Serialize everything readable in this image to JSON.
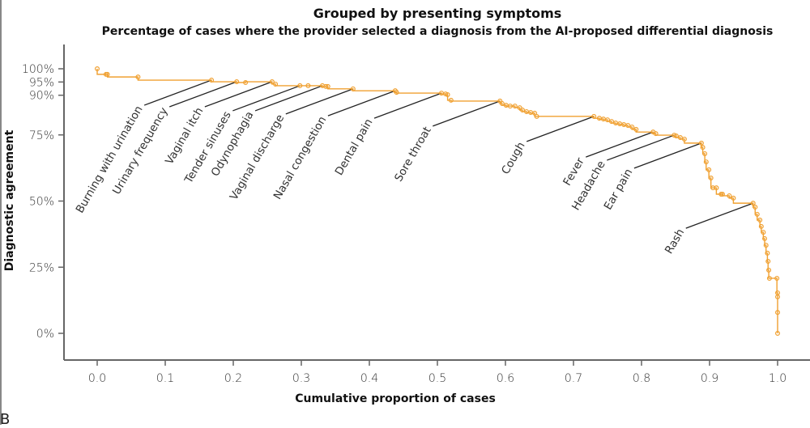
{
  "panel_letter": "B",
  "chart_data": {
    "type": "line",
    "style": "step",
    "title": "Grouped by presenting symptoms",
    "subtitle": "Percentage of cases where the provider selected a diagnosis from the AI-proposed differential diagnosis",
    "xlabel": "Cumulative proportion of cases",
    "ylabel": "Diagnostic agreement",
    "xlim": [
      -0.045,
      1.045
    ],
    "ylim": [
      -10,
      106
    ],
    "x_ticks": [
      0.0,
      0.1,
      0.2,
      0.3,
      0.4,
      0.5,
      0.6,
      0.7,
      0.8,
      0.9,
      1.0
    ],
    "x_tick_labels": [
      "0.0",
      "0.1",
      "0.2",
      "0.3",
      "0.4",
      "0.5",
      "0.6",
      "0.7",
      "0.8",
      "0.9",
      "1.0"
    ],
    "y_ticks": [
      0,
      25,
      50,
      75,
      90,
      95,
      100
    ],
    "y_tick_labels": [
      "0%",
      "25%",
      "50%",
      "75%",
      "90%",
      "95%",
      "100%"
    ],
    "grid": false,
    "series_color": "#F0A030",
    "series": [
      {
        "name": "Diagnostic agreement by symptom",
        "points": [
          [
            0.0,
            100.0
          ],
          [
            0.013,
            97.9
          ],
          [
            0.015,
            97.9
          ],
          [
            0.06,
            96.9
          ],
          [
            0.168,
            95.7
          ],
          [
            0.205,
            95.1
          ],
          [
            0.218,
            94.8
          ],
          [
            0.257,
            95.1
          ],
          [
            0.262,
            94.2
          ],
          [
            0.298,
            93.6
          ],
          [
            0.31,
            93.6
          ],
          [
            0.331,
            93.6
          ],
          [
            0.336,
            93.3
          ],
          [
            0.339,
            93.3
          ],
          [
            0.376,
            92.4
          ],
          [
            0.438,
            91.7
          ],
          [
            0.44,
            91.1
          ],
          [
            0.506,
            90.8
          ],
          [
            0.512,
            90.5
          ],
          [
            0.515,
            90.2
          ],
          [
            0.52,
            88.1
          ],
          [
            0.592,
            87.8
          ],
          [
            0.595,
            86.9
          ],
          [
            0.601,
            86.2
          ],
          [
            0.607,
            85.9
          ],
          [
            0.614,
            85.9
          ],
          [
            0.621,
            85.3
          ],
          [
            0.625,
            84.4
          ],
          [
            0.631,
            83.8
          ],
          [
            0.637,
            83.5
          ],
          [
            0.643,
            83.2
          ],
          [
            0.646,
            82.0
          ],
          [
            0.73,
            82.0
          ],
          [
            0.738,
            81.3
          ],
          [
            0.744,
            81.0
          ],
          [
            0.75,
            80.7
          ],
          [
            0.756,
            80.1
          ],
          [
            0.762,
            79.5
          ],
          [
            0.768,
            79.2
          ],
          [
            0.774,
            78.9
          ],
          [
            0.78,
            78.6
          ],
          [
            0.786,
            78.0
          ],
          [
            0.792,
            77.1
          ],
          [
            0.817,
            76.1
          ],
          [
            0.821,
            75.5
          ],
          [
            0.848,
            74.9
          ],
          [
            0.851,
            74.6
          ],
          [
            0.857,
            74.0
          ],
          [
            0.863,
            73.4
          ],
          [
            0.888,
            71.9
          ],
          [
            0.89,
            70.3
          ],
          [
            0.893,
            67.9
          ],
          [
            0.895,
            64.8
          ],
          [
            0.899,
            61.8
          ],
          [
            0.902,
            58.7
          ],
          [
            0.905,
            55.0
          ],
          [
            0.91,
            55.0
          ],
          [
            0.917,
            52.6
          ],
          [
            0.919,
            52.6
          ],
          [
            0.929,
            52.0
          ],
          [
            0.935,
            51.1
          ],
          [
            0.964,
            49.2
          ],
          [
            0.967,
            47.7
          ],
          [
            0.97,
            45.0
          ],
          [
            0.974,
            42.8
          ],
          [
            0.976,
            40.4
          ],
          [
            0.979,
            38.2
          ],
          [
            0.981,
            35.8
          ],
          [
            0.983,
            33.3
          ],
          [
            0.985,
            30.3
          ],
          [
            0.986,
            27.2
          ],
          [
            0.987,
            23.9
          ],
          [
            0.988,
            20.8
          ],
          [
            0.999,
            20.8
          ],
          [
            1.0,
            15.3
          ],
          [
            1.0,
            13.8
          ],
          [
            1.0,
            7.9
          ],
          [
            1.0,
            0.0
          ]
        ]
      }
    ],
    "annotations": [
      {
        "label": "Burning with urination",
        "x": 0.168,
        "y": 95.7
      },
      {
        "label": "Urinary frequency",
        "x": 0.205,
        "y": 95.1
      },
      {
        "label": "Vaginal itch",
        "x": 0.257,
        "y": 95.1
      },
      {
        "label": "Tender sinuses",
        "x": 0.298,
        "y": 93.6
      },
      {
        "label": "Odynophagia",
        "x": 0.331,
        "y": 93.6
      },
      {
        "label": "Vaginal discharge",
        "x": 0.376,
        "y": 92.4
      },
      {
        "label": "Nasal congestion",
        "x": 0.438,
        "y": 91.7
      },
      {
        "label": "Dental pain",
        "x": 0.506,
        "y": 90.8
      },
      {
        "label": "Sore throat",
        "x": 0.592,
        "y": 87.8
      },
      {
        "label": "Cough",
        "x": 0.73,
        "y": 82.0
      },
      {
        "label": "Fever",
        "x": 0.817,
        "y": 76.1
      },
      {
        "label": "Headache",
        "x": 0.848,
        "y": 74.9
      },
      {
        "label": "Ear pain",
        "x": 0.888,
        "y": 71.9
      },
      {
        "label": "Rash",
        "x": 0.964,
        "y": 49.2
      }
    ]
  }
}
